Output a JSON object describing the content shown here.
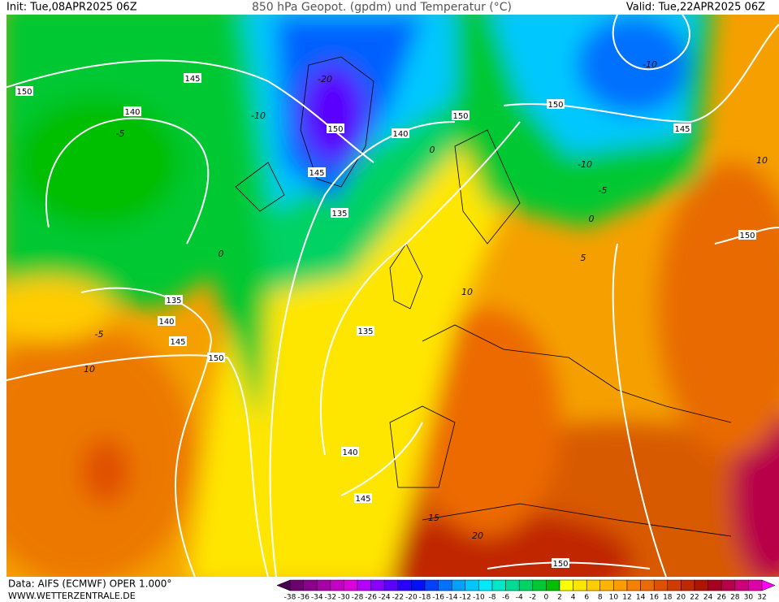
{
  "header": {
    "init": "Init: Tue,08APR2025 06Z",
    "title": "850 hPa Geopot. (gpdm) und Temperatur (°C)",
    "valid": "Valid: Tue,22APR2025 06Z"
  },
  "footer": {
    "data_source": "Data: AIFS (ECMWF) OPER 1.000°",
    "website": "WWW.WETTERZENTRALE.DE"
  },
  "color_scale": {
    "labels": [
      -38,
      -36,
      -34,
      -32,
      -30,
      -28,
      -26,
      -24,
      -22,
      -20,
      -18,
      -16,
      -14,
      -12,
      -10,
      -8,
      -6,
      -4,
      -2,
      0,
      2,
      4,
      6,
      8,
      10,
      12,
      14,
      16,
      18,
      20,
      22,
      24,
      26,
      28,
      30,
      32
    ],
    "colors": [
      "#4a0050",
      "#6e0070",
      "#8a008a",
      "#a800a8",
      "#c400c4",
      "#dc00dc",
      "#b400ff",
      "#8800ff",
      "#5a00ff",
      "#2800ff",
      "#0010ff",
      "#0040ff",
      "#0070ff",
      "#00a0ff",
      "#00c8ff",
      "#00eaff",
      "#00e6c8",
      "#00dc96",
      "#00d264",
      "#00c832",
      "#00be00",
      "#ffff00",
      "#ffe600",
      "#ffcc00",
      "#ffb400",
      "#ff9c00",
      "#f88000",
      "#ec6a00",
      "#e05000",
      "#d03c00",
      "#c02800",
      "#b01400",
      "#a80020",
      "#b8004a",
      "#cc0078",
      "#e000a8",
      "#ff00ff"
    ]
  },
  "contour_labels": [
    150,
    145,
    140,
    150,
    140,
    150,
    150,
    145,
    145,
    135,
    150,
    135,
    140,
    145,
    150,
    135,
    140,
    145,
    150
  ],
  "isotherm_labels": [
    -10,
    -5,
    0,
    -5,
    10,
    -20,
    -10,
    -10,
    -5,
    0,
    10,
    0,
    5,
    10,
    15,
    20
  ]
}
